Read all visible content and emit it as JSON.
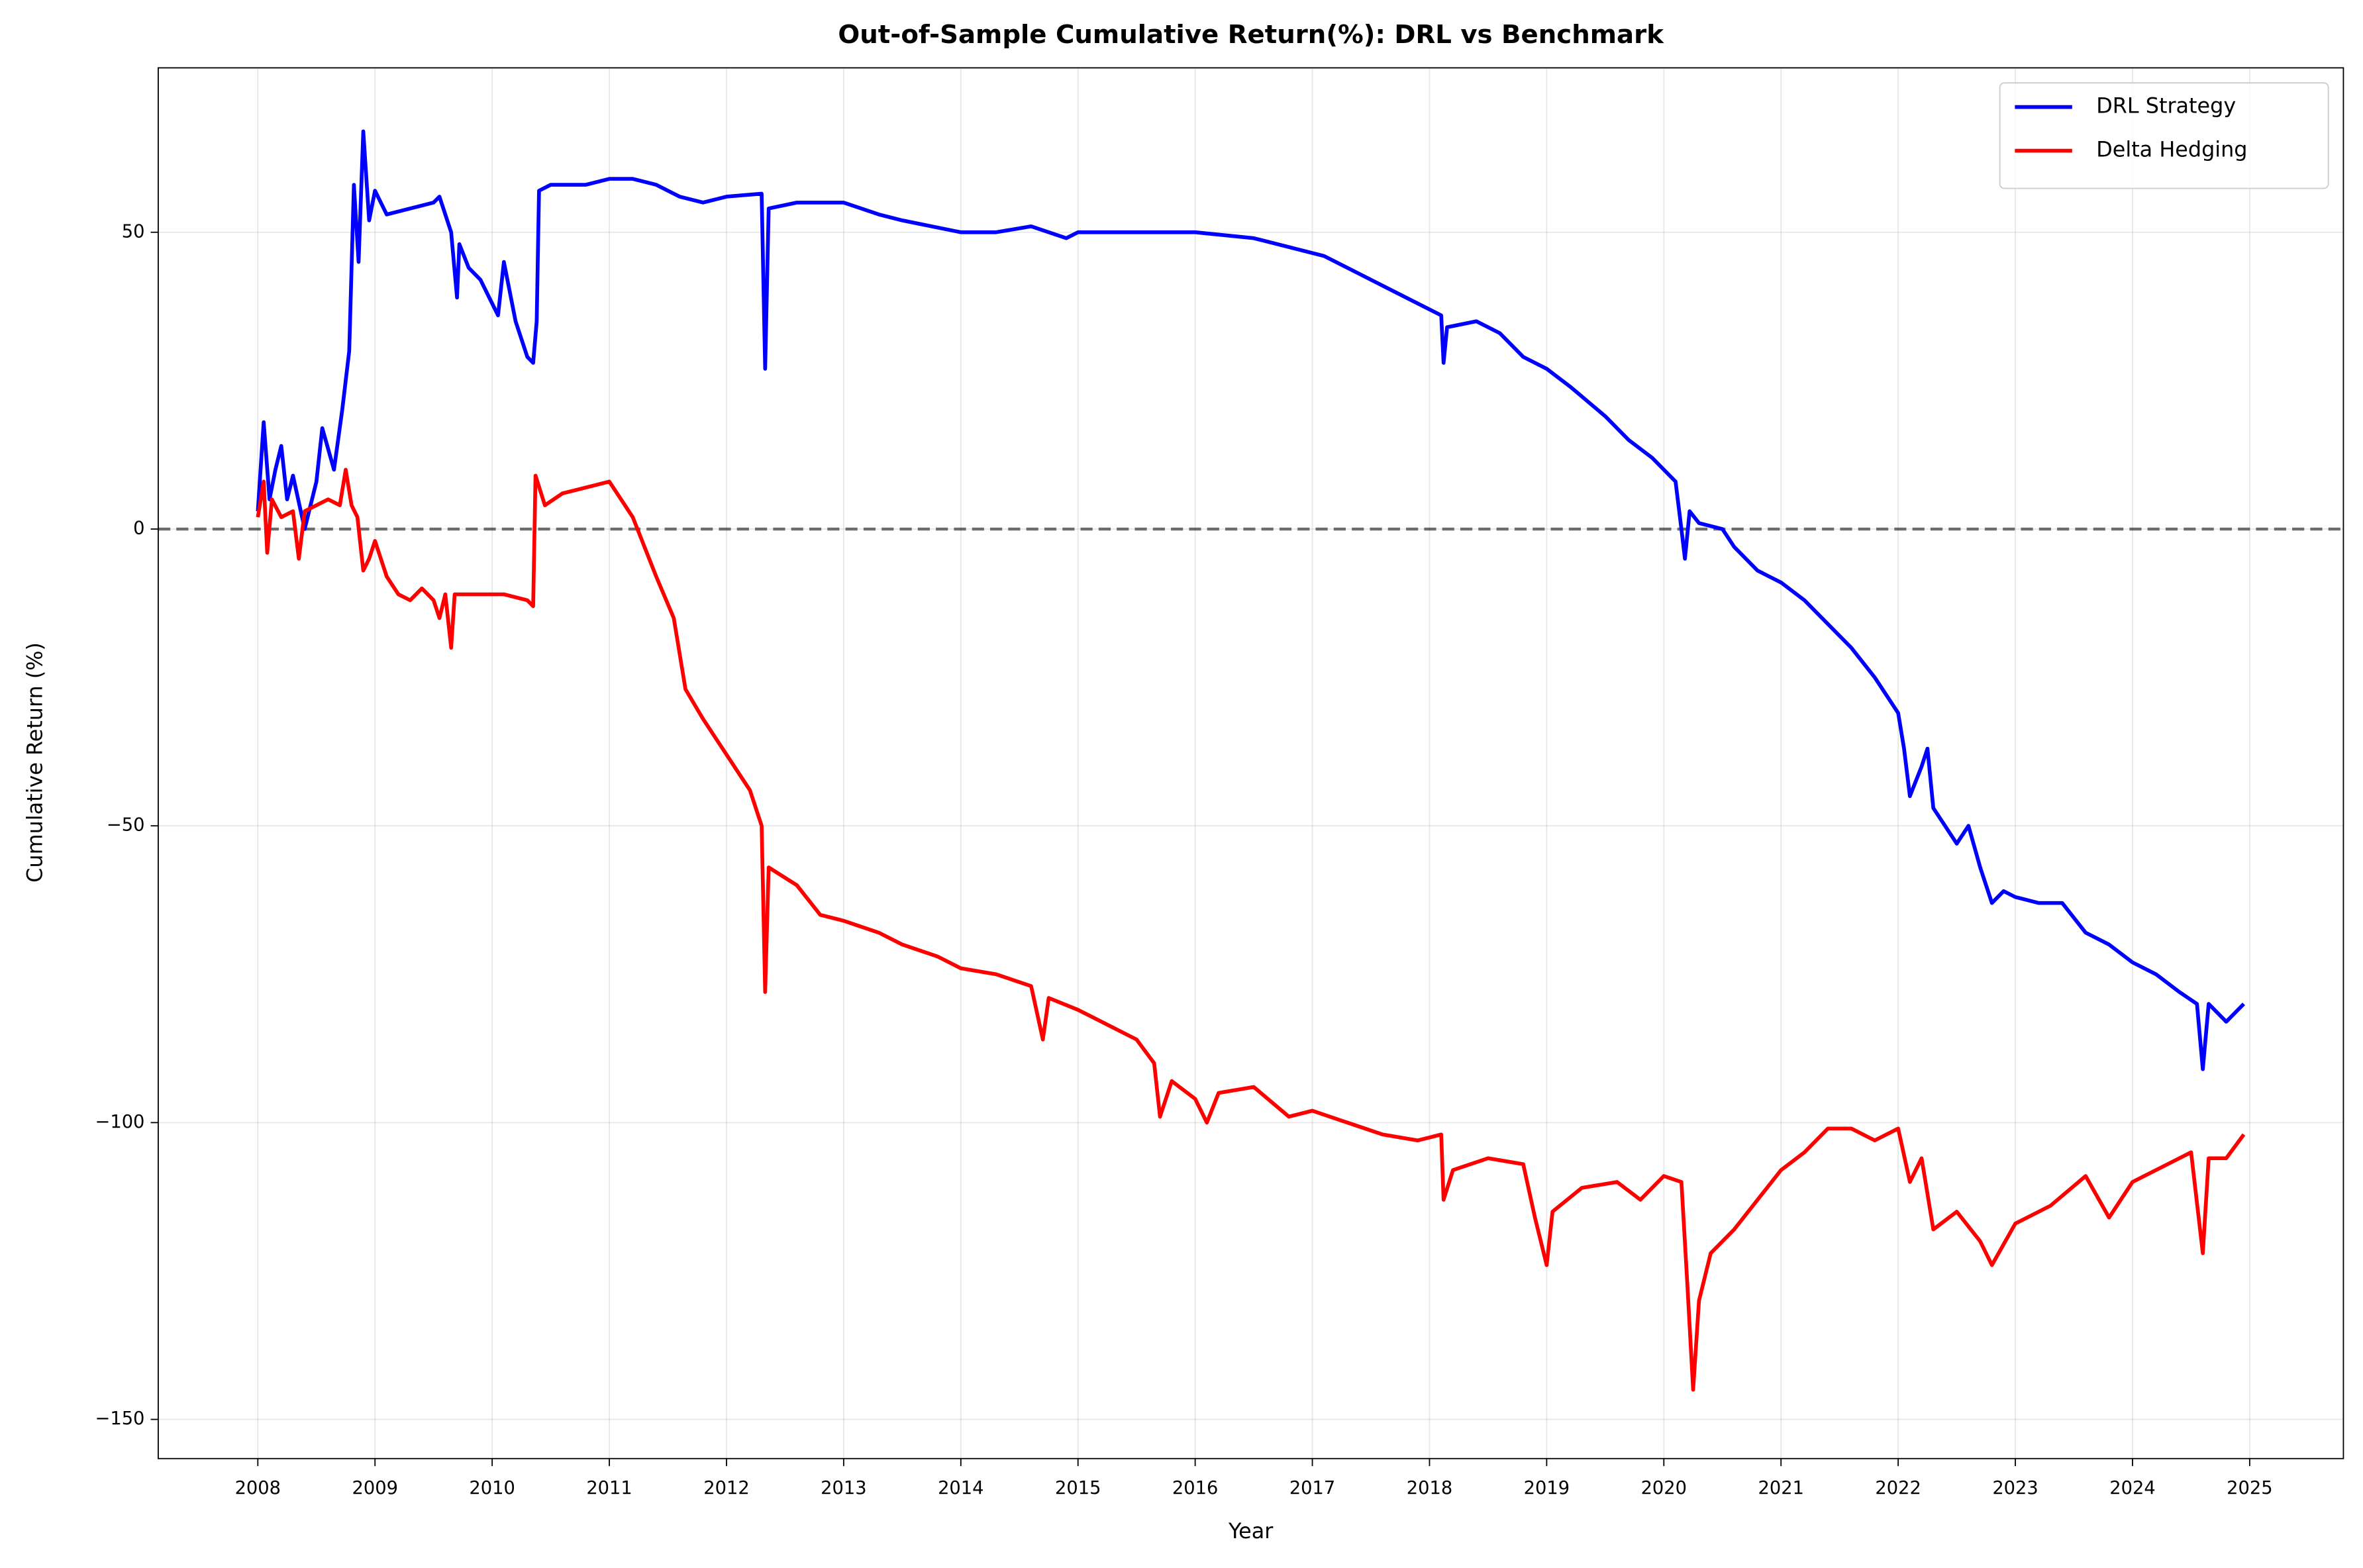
{
  "chart_data": {
    "type": "line",
    "title": "Out-of-Sample Cumulative Return(%): DRL vs Benchmark",
    "x_label": "Year",
    "y_label": "Cumulative Return (%)",
    "xlim": [
      2007.15,
      2025.8
    ],
    "ylim": [
      -156.6,
      77.7
    ],
    "xticks": [
      2008,
      2009,
      2010,
      2011,
      2012,
      2013,
      2014,
      2015,
      2016,
      2017,
      2018,
      2019,
      2020,
      2021,
      2022,
      2023,
      2024,
      2025
    ],
    "yticks": [
      -150,
      -100,
      -50,
      0,
      50
    ],
    "grid": true,
    "hline": 0,
    "legend": "upper right",
    "series": [
      {
        "name": "DRL Strategy",
        "color": "#0000ff",
        "x": [
          2008.0,
          2008.05,
          2008.1,
          2008.15,
          2008.2,
          2008.25,
          2008.3,
          2008.4,
          2008.5,
          2008.55,
          2008.65,
          2008.72,
          2008.78,
          2008.82,
          2008.86,
          2008.9,
          2008.95,
          2009.0,
          2009.1,
          2009.3,
          2009.5,
          2009.55,
          2009.65,
          2009.7,
          2009.72,
          2009.8,
          2009.9,
          2010.0,
          2010.05,
          2010.1,
          2010.2,
          2010.3,
          2010.35,
          2010.38,
          2010.4,
          2010.5,
          2010.8,
          2011.0,
          2011.2,
          2011.4,
          2011.6,
          2011.8,
          2012.0,
          2012.3,
          2012.33,
          2012.36,
          2012.6,
          2013.0,
          2013.3,
          2013.5,
          2014.0,
          2014.3,
          2014.6,
          2014.9,
          2015.0,
          2015.5,
          2015.7,
          2016.0,
          2016.5,
          2016.9,
          2017.1,
          2017.4,
          2017.7,
          2018.0,
          2018.1,
          2018.12,
          2018.15,
          2018.4,
          2018.6,
          2018.8,
          2019.0,
          2019.2,
          2019.5,
          2019.7,
          2019.9,
          2020.1,
          2020.15,
          2020.18,
          2020.22,
          2020.3,
          2020.5,
          2020.6,
          2020.8,
          2021.0,
          2021.2,
          2021.4,
          2021.6,
          2021.8,
          2022.0,
          2022.05,
          2022.1,
          2022.2,
          2022.25,
          2022.3,
          2022.4,
          2022.5,
          2022.6,
          2022.7,
          2022.8,
          2022.9,
          2023.0,
          2023.2,
          2023.4,
          2023.6,
          2023.8,
          2024.0,
          2024.2,
          2024.4,
          2024.55,
          2024.6,
          2024.65,
          2024.8,
          2024.95
        ],
        "values": [
          3,
          18,
          5,
          10,
          14,
          5,
          9,
          0,
          8,
          17,
          10,
          20,
          30,
          58,
          45,
          67,
          52,
          57,
          53,
          54,
          55,
          56,
          50,
          39,
          48,
          44,
          42,
          38,
          36,
          45,
          35,
          29,
          28,
          35,
          57,
          58,
          58,
          59,
          59,
          58,
          56,
          55,
          56,
          56.5,
          27,
          54,
          55,
          55,
          53,
          52,
          50,
          50,
          51,
          49,
          50,
          50,
          50,
          50,
          49,
          47,
          46,
          43,
          40,
          37,
          36,
          28,
          34,
          35,
          33,
          29,
          27,
          24,
          19,
          15,
          12,
          8,
          0,
          -5,
          3,
          1,
          0,
          -3,
          -7,
          -9,
          -12,
          -16,
          -20,
          -25,
          -31,
          -37,
          -45,
          -40,
          -37,
          -47,
          -50,
          -53,
          -50,
          -57,
          -63,
          -61,
          -62,
          -63,
          -63,
          -68,
          -70,
          -73,
          -75,
          -78,
          -80,
          -91,
          -80,
          -83,
          -80
        ]
      },
      {
        "name": "Delta Hedging",
        "color": "#ff0000",
        "x": [
          2008.0,
          2008.05,
          2008.08,
          2008.12,
          2008.2,
          2008.3,
          2008.35,
          2008.4,
          2008.5,
          2008.6,
          2008.7,
          2008.75,
          2008.8,
          2008.85,
          2008.9,
          2008.95,
          2009.0,
          2009.1,
          2009.2,
          2009.3,
          2009.4,
          2009.5,
          2009.55,
          2009.6,
          2009.65,
          2009.68,
          2009.9,
          2010.1,
          2010.3,
          2010.35,
          2010.37,
          2010.45,
          2010.6,
          2010.8,
          2011.0,
          2011.2,
          2011.4,
          2011.55,
          2011.65,
          2011.8,
          2012.0,
          2012.2,
          2012.3,
          2012.33,
          2012.36,
          2012.6,
          2012.8,
          2013.0,
          2013.3,
          2013.5,
          2013.8,
          2014.0,
          2014.3,
          2014.6,
          2014.7,
          2014.75,
          2015.0,
          2015.3,
          2015.5,
          2015.65,
          2015.7,
          2015.8,
          2016.0,
          2016.1,
          2016.2,
          2016.5,
          2016.8,
          2017.0,
          2017.3,
          2017.6,
          2017.9,
          2018.1,
          2018.12,
          2018.2,
          2018.5,
          2018.8,
          2018.9,
          2019.0,
          2019.05,
          2019.3,
          2019.6,
          2019.8,
          2020.0,
          2020.15,
          2020.2,
          2020.25,
          2020.3,
          2020.4,
          2020.6,
          2020.8,
          2021.0,
          2021.2,
          2021.4,
          2021.6,
          2021.8,
          2022.0,
          2022.1,
          2022.2,
          2022.3,
          2022.5,
          2022.7,
          2022.8,
          2023.0,
          2023.3,
          2023.6,
          2023.8,
          2024.0,
          2024.3,
          2024.5,
          2024.6,
          2024.65,
          2024.8,
          2024.95
        ],
        "values": [
          2,
          8,
          -4,
          5,
          2,
          3,
          -5,
          3,
          4,
          5,
          4,
          10,
          4,
          2,
          -7,
          -5,
          -2,
          -8,
          -11,
          -12,
          -10,
          -12,
          -15,
          -11,
          -20,
          -11,
          -11,
          -11,
          -12,
          -13,
          9,
          4,
          6,
          7,
          8,
          2,
          -8,
          -15,
          -27,
          -32,
          -38,
          -44,
          -50,
          -78,
          -57,
          -60,
          -65,
          -66,
          -68,
          -70,
          -72,
          -74,
          -75,
          -77,
          -86,
          -79,
          -81,
          -84,
          -86,
          -90,
          -99,
          -93,
          -96,
          -100,
          -95,
          -94,
          -99,
          -98,
          -100,
          -102,
          -103,
          -102,
          -113,
          -108,
          -106,
          -107,
          -116,
          -124,
          -115,
          -111,
          -110,
          -113,
          -109,
          -110,
          -127,
          -145,
          -130,
          -122,
          -118,
          -113,
          -108,
          -105,
          -101,
          -101,
          -103,
          -101,
          -110,
          -106,
          -118,
          -115,
          -120,
          -124,
          -117,
          -114,
          -109,
          -116,
          -110,
          -107,
          -105,
          -122,
          -106,
          -106,
          -102
        ]
      }
    ]
  }
}
